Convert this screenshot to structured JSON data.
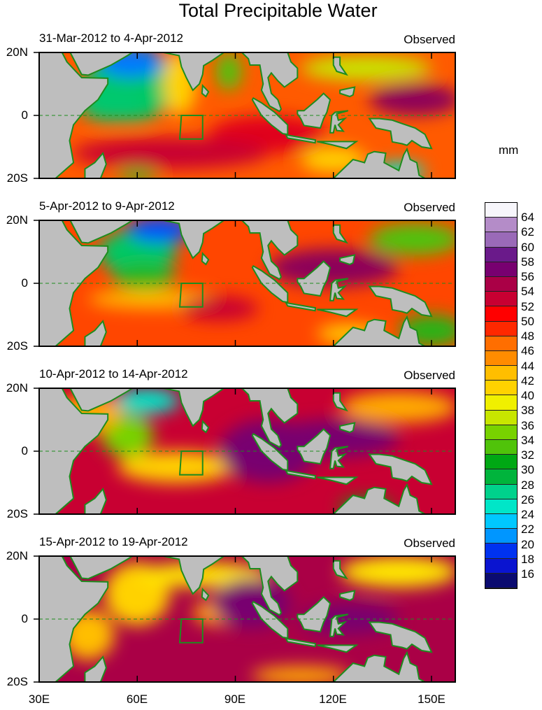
{
  "title": "Total Precipitable Water",
  "panels": [
    {
      "period": "31-Mar-2012 to 4-Apr-2012",
      "label": "Observed"
    },
    {
      "period": "5-Apr-2012 to 9-Apr-2012",
      "label": "Observed"
    },
    {
      "period": "10-Apr-2012 to 14-Apr-2012",
      "label": "Observed"
    },
    {
      "period": "15-Apr-2012 to 19-Apr-2012",
      "label": "Observed"
    }
  ],
  "y_ticks": [
    "20N",
    "0",
    "20S"
  ],
  "x_ticks": [
    "30E",
    "60E",
    "90E",
    "120E",
    "150E"
  ],
  "map_extent": {
    "lon": [
      30,
      157
    ],
    "lat": [
      -20,
      20
    ]
  },
  "colorbar": {
    "units": "mm",
    "labels": [
      "64",
      "62",
      "60",
      "58",
      "56",
      "54",
      "52",
      "50",
      "48",
      "46",
      "44",
      "42",
      "40",
      "38",
      "36",
      "34",
      "32",
      "30",
      "28",
      "26",
      "24",
      "22",
      "20",
      "18",
      "16"
    ],
    "colors": [
      "#f7f6fb",
      "#d6c8e3",
      "#b48cc8",
      "#9a6ab8",
      "#7d3a9e",
      "#6a1a8a",
      "#780070",
      "#8c005a",
      "#aa0046",
      "#c80032",
      "#e0001e",
      "#ff0000",
      "#ff2800",
      "#ff4600",
      "#ff6e00",
      "#ff8c00",
      "#ffaa00",
      "#ffbe00",
      "#ffd200",
      "#ffe600",
      "#f0f000",
      "#c8e600",
      "#a0dc00",
      "#78d200",
      "#50c30a",
      "#28b414",
      "#00a814",
      "#00b43c",
      "#00c864",
      "#00d28c",
      "#00e6c8",
      "#00ffff",
      "#00c8ff",
      "#0096ff",
      "#005aff",
      "#0032f0",
      "#0a14d0",
      "#0a0aa0",
      "#0b0b70"
    ]
  },
  "colors": {
    "land": "#bebebe",
    "coast": "#1e8c1e"
  }
}
